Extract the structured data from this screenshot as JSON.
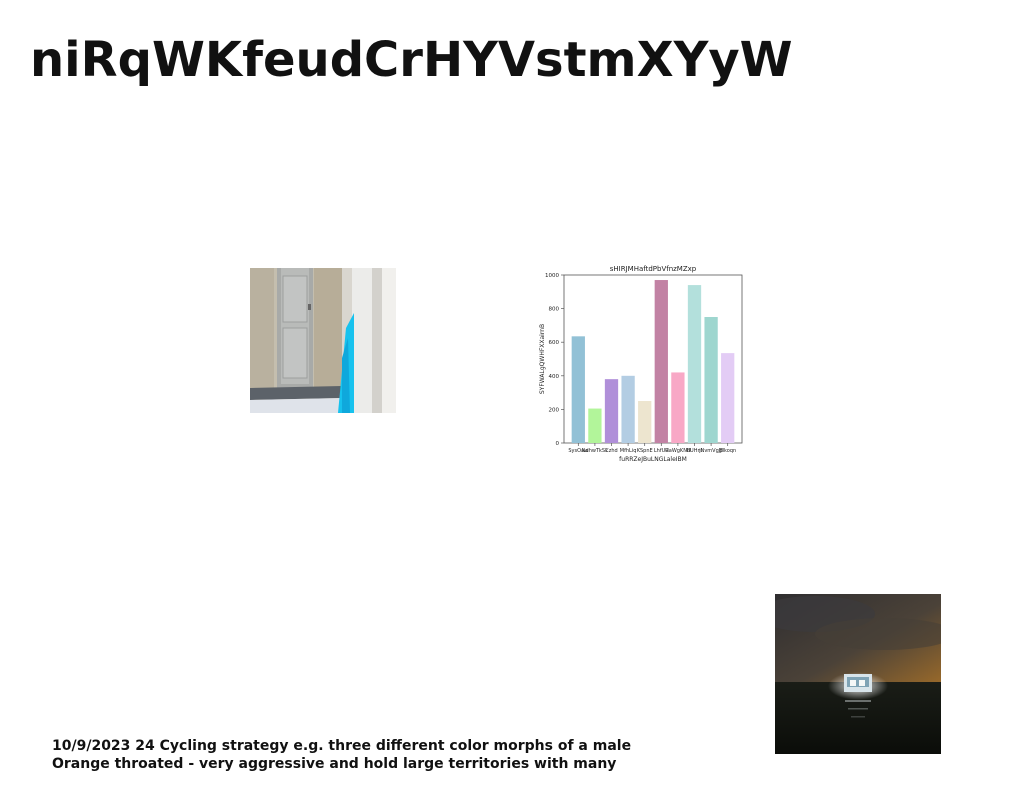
{
  "document": {
    "title": "niRqWKfeudCrHYVstmXYyW",
    "body_lines": [
      "10/9/2023 24 Cycling strategy e.g. three different color morphs of a male",
      "Orange throated - very aggressive and hold large territories with many"
    ]
  },
  "chart_data": {
    "type": "bar",
    "title": "sHIRJMHaftdPbVfnzMZxp",
    "xlabel": "fuRRZeJBuLNGLaleIBM",
    "ylabel": "SYFWALgQWHFXXairnB",
    "ylim": [
      0,
      1000
    ],
    "yticks": [
      0,
      200,
      400,
      600,
      800,
      1000
    ],
    "categories": [
      "SysOaw",
      "NdhwTkSk",
      "Czhd",
      "MfhLiq",
      "KSpnE",
      "LhfUR",
      "UaWgKNN",
      "UUHnt",
      "jNvmVgJjl",
      "Blkoqn"
    ],
    "values": [
      635,
      205,
      380,
      400,
      250,
      970,
      420,
      940,
      750,
      535
    ],
    "colors": [
      "#92c1d6",
      "#b2f59a",
      "#b08fd9",
      "#b3cde3",
      "#ede5cf",
      "#c282a4",
      "#f8a8c6",
      "#b3e0dc",
      "#9ed6cf",
      "#e3ccf5"
    ],
    "grid": false
  }
}
